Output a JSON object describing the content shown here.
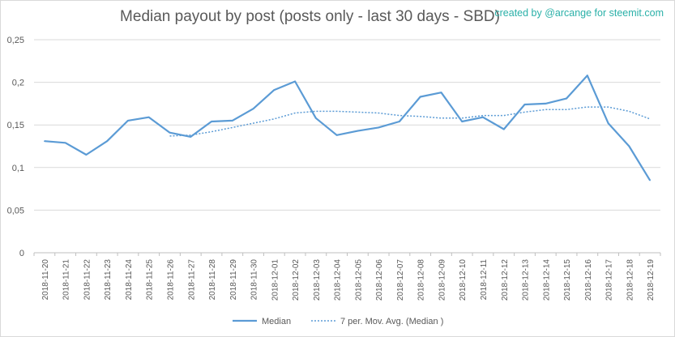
{
  "chart_data": {
    "type": "line",
    "title": "Median payout by post (posts only - last 30 days - SBD)",
    "credit": "created by @arcange for steemit.com",
    "xlabel": "",
    "ylabel": "",
    "ylim": [
      0,
      0.25
    ],
    "y_ticks": [
      "0",
      "0,05",
      "0,1",
      "0,15",
      "0,2",
      "0,25"
    ],
    "grid": true,
    "legend_position": "bottom",
    "categories": [
      "2018-11-20",
      "2018-11-21",
      "2018-11-22",
      "2018-11-23",
      "2018-11-24",
      "2018-11-25",
      "2018-11-26",
      "2018-11-27",
      "2018-11-28",
      "2018-11-29",
      "2018-11-30",
      "2018-12-01",
      "2018-12-02",
      "2018-12-03",
      "2018-12-04",
      "2018-12-05",
      "2018-12-06",
      "2018-12-07",
      "2018-12-08",
      "2018-12-09",
      "2018-12-10",
      "2018-12-11",
      "2018-12-12",
      "2018-12-13",
      "2018-12-14",
      "2018-12-15",
      "2018-12-16",
      "2018-12-17",
      "2018-12-18",
      "2018-12-19"
    ],
    "series": [
      {
        "name": "Median",
        "style": "solid",
        "color": "#5b9bd5",
        "values": [
          0.131,
          0.129,
          0.115,
          0.131,
          0.155,
          0.159,
          0.141,
          0.136,
          0.154,
          0.155,
          0.169,
          0.191,
          0.201,
          0.158,
          0.138,
          0.143,
          0.147,
          0.154,
          0.183,
          0.188,
          0.154,
          0.159,
          0.145,
          0.174,
          0.175,
          0.181,
          0.208,
          0.152,
          0.125,
          0.085
        ]
      },
      {
        "name": "7 per. Mov. Avg. (Median )",
        "style": "dotted",
        "color": "#5b9bd5",
        "values": [
          null,
          null,
          null,
          null,
          null,
          null,
          0.137,
          0.138,
          0.142,
          0.147,
          0.152,
          0.157,
          0.164,
          0.166,
          0.166,
          0.165,
          0.164,
          0.161,
          0.16,
          0.158,
          0.158,
          0.161,
          0.161,
          0.165,
          0.168,
          0.168,
          0.171,
          0.171,
          0.166,
          0.157
        ]
      }
    ]
  }
}
